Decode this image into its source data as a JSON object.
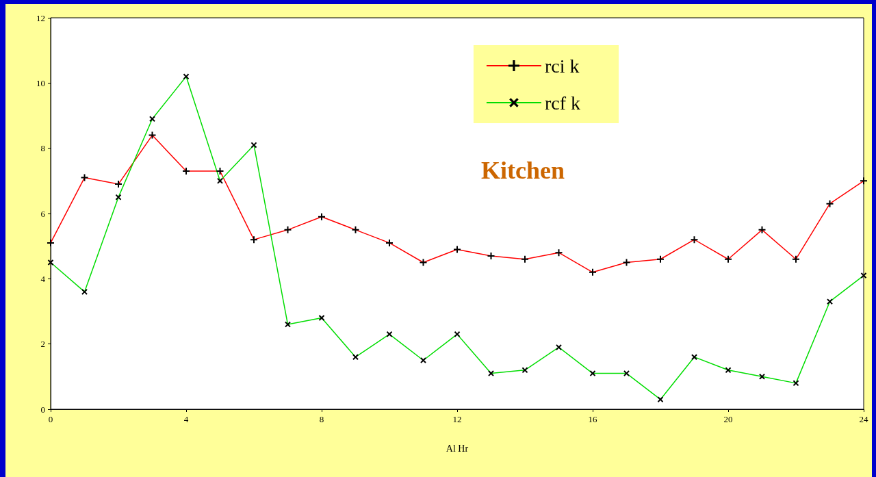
{
  "chart_data": {
    "type": "line",
    "title": "Kitchen",
    "xlabel": "Al Hr",
    "x": [
      0,
      1,
      2,
      3,
      4,
      5,
      6,
      7,
      8,
      9,
      10,
      11,
      12,
      13,
      14,
      15,
      16,
      17,
      18,
      19,
      20,
      21,
      22,
      23,
      24
    ],
    "series": [
      {
        "name": "rci k",
        "color": "#ff0000",
        "values": [
          5.1,
          7.1,
          6.9,
          8.4,
          7.3,
          7.3,
          5.2,
          5.5,
          5.9,
          5.5,
          5.1,
          4.5,
          4.9,
          4.7,
          4.6,
          4.8,
          4.2,
          4.5,
          4.6,
          5.2,
          4.6,
          5.5,
          4.6,
          6.3,
          7.0
        ]
      },
      {
        "name": "rcf k",
        "color": "#00dd00",
        "values": [
          4.5,
          3.6,
          6.5,
          8.9,
          10.2,
          7.0,
          8.1,
          2.6,
          2.8,
          1.6,
          2.3,
          1.5,
          2.3,
          1.1,
          1.2,
          1.9,
          1.1,
          1.1,
          0.3,
          1.6,
          1.2,
          1.0,
          0.8,
          3.3,
          4.1
        ]
      }
    ],
    "xlim": [
      0,
      24
    ],
    "xticks": [
      0,
      4,
      8,
      12,
      16,
      20,
      24
    ],
    "ylim": [
      0,
      12
    ],
    "yticks": [
      0,
      2,
      4,
      6,
      8,
      10,
      12
    ],
    "grid": false,
    "legend": "top right",
    "marker": "cross",
    "line_style": "solid"
  }
}
